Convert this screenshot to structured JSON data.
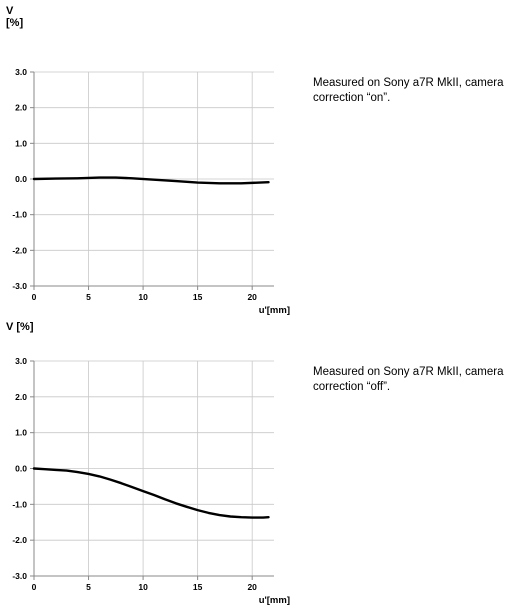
{
  "chart_data": [
    {
      "type": "line",
      "ylabel": "V\n[%]",
      "xlabel": "u'[mm]",
      "xlim": [
        0,
        22
      ],
      "ylim": [
        -3.0,
        3.0
      ],
      "x_ticks": [
        "0",
        "5",
        "10",
        "15",
        "20"
      ],
      "y_ticks": [
        "3.0",
        "2.0",
        "1.0",
        "0.0",
        "-1.0",
        "-2.0",
        "-3.0"
      ],
      "grid": true,
      "series": [
        {
          "x": [
            0,
            2,
            4,
            6,
            7.5,
            9,
            11,
            13,
            15,
            17,
            19,
            21.5
          ],
          "y": [
            0.0,
            0.01,
            0.02,
            0.04,
            0.04,
            0.02,
            -0.02,
            -0.06,
            -0.1,
            -0.12,
            -0.12,
            -0.09
          ]
        }
      ],
      "note": "Measured on Sony a7R MkII, camera correction “on”."
    },
    {
      "type": "line",
      "ylabel": "V [%]",
      "xlabel": "u'[mm]",
      "xlim": [
        0,
        22
      ],
      "ylim": [
        -3.0,
        3.0
      ],
      "x_ticks": [
        "0",
        "5",
        "10",
        "15",
        "20"
      ],
      "y_ticks": [
        "3.0",
        "2.0",
        "1.0",
        "0.0",
        "-1.0",
        "-2.0",
        "-3.0"
      ],
      "grid": true,
      "series": [
        {
          "x": [
            0,
            1,
            2,
            3,
            4,
            5,
            6,
            7,
            8,
            9,
            10,
            11,
            12,
            13,
            14,
            15,
            16,
            17,
            18,
            19,
            20,
            21,
            21.5
          ],
          "y": [
            0.0,
            -0.02,
            -0.04,
            -0.06,
            -0.1,
            -0.15,
            -0.22,
            -0.31,
            -0.41,
            -0.52,
            -0.63,
            -0.74,
            -0.86,
            -0.97,
            -1.07,
            -1.16,
            -1.24,
            -1.3,
            -1.34,
            -1.36,
            -1.37,
            -1.37,
            -1.36
          ]
        }
      ],
      "note": "Measured on Sony a7R MkII, camera correction “off”."
    }
  ]
}
